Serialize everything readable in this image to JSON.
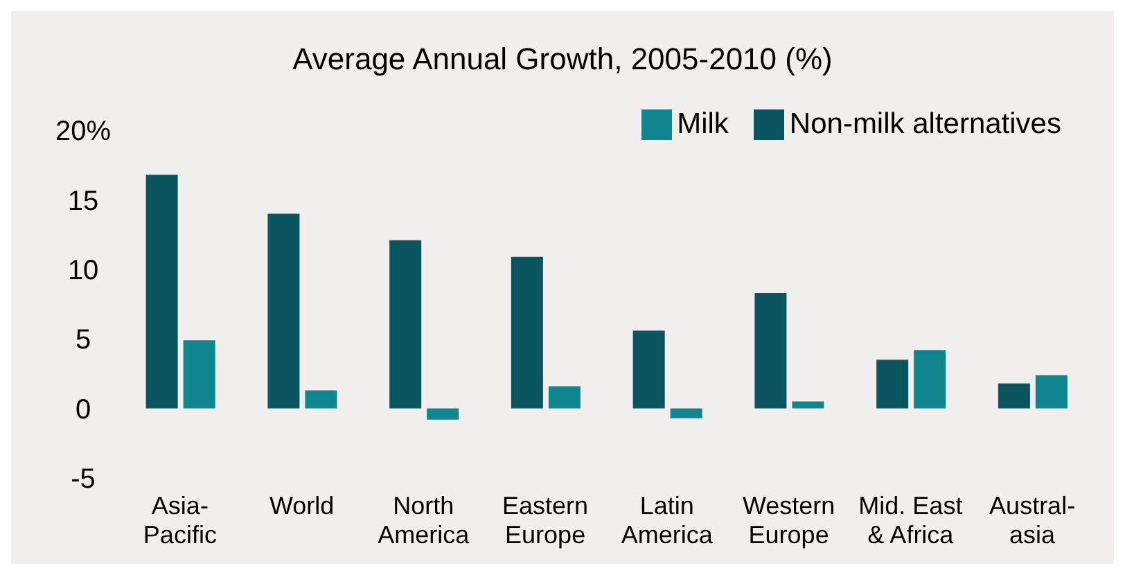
{
  "chart_data": {
    "type": "bar",
    "title": "Average Annual Growth, 2005-2010 (%)",
    "categories": [
      "Asia-\nPacific",
      "World",
      "North\nAmerica",
      "Eastern\nEurope",
      "Latin\nAmerica",
      "Western\nEurope",
      "Mid. East\n& Africa",
      "Austral-\nasia"
    ],
    "series": [
      {
        "name": "Non-milk alternatives",
        "color": "#0b5560",
        "values": [
          16.8,
          14.0,
          12.1,
          10.9,
          5.6,
          8.3,
          3.5,
          1.8
        ]
      },
      {
        "name": "Milk",
        "color": "#0f8590",
        "values": [
          4.9,
          1.3,
          -0.8,
          1.6,
          -0.7,
          0.5,
          4.2,
          2.4
        ]
      }
    ],
    "ylim": [
      -5,
      20
    ],
    "yticks": [
      -5,
      0,
      5,
      10,
      {
        "value": 20,
        "label": "20%"
      },
      15
    ],
    "grid": false,
    "legend": "top right"
  }
}
